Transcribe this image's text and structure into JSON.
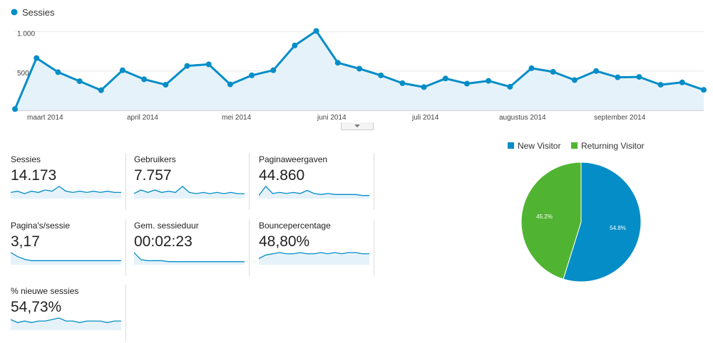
{
  "colors": {
    "primary": "#058dc7",
    "area": "#e6f2fa",
    "green": "#50b432",
    "grid": "#e8e8e8"
  },
  "chart_data": [
    {
      "type": "line",
      "legend": "Sessies",
      "y_ticks": [
        {
          "value": 500,
          "label": "500"
        },
        {
          "value": 1000,
          "label": "1.000"
        }
      ],
      "ylim": [
        0,
        1150
      ],
      "month_labels": [
        "maart 2014",
        "april 2014",
        "mei 2014",
        "juni 2014",
        "juli 2014",
        "augustus 2014",
        "september 2014"
      ],
      "values": [
        15,
        665,
        485,
        370,
        255,
        510,
        395,
        325,
        565,
        585,
        330,
        445,
        510,
        825,
        1010,
        605,
        530,
        445,
        345,
        295,
        405,
        340,
        375,
        300,
        535,
        490,
        385,
        500,
        420,
        425,
        325,
        355,
        260
      ]
    },
    {
      "type": "pie",
      "legend": [
        "New Visitor",
        "Returning Visitor"
      ],
      "values": [
        54.8,
        45.2
      ],
      "labels": [
        "54.8%",
        "45.2%"
      ],
      "colors": [
        "#058dc7",
        "#50b432"
      ]
    }
  ],
  "metrics": [
    {
      "label": "Sessies",
      "value": "14.173",
      "spark": [
        5,
        6,
        4,
        6,
        5,
        7,
        6,
        10,
        6,
        5,
        6,
        5,
        6,
        5,
        6,
        5,
        5
      ]
    },
    {
      "label": "Gebruikers",
      "value": "7.757",
      "spark": [
        4,
        7,
        5,
        7,
        5,
        6,
        5,
        10,
        5,
        4,
        5,
        4,
        5,
        4,
        5,
        4,
        4
      ]
    },
    {
      "label": "Paginaweergaven",
      "value": "44.860",
      "spark": [
        3,
        12,
        5,
        6,
        5,
        6,
        5,
        8,
        5,
        4,
        5,
        4,
        4,
        4,
        4,
        3,
        3
      ]
    },
    {
      "label": "Pagina's/sessie",
      "value": "3,17",
      "spark": [
        9,
        6,
        4,
        3,
        3,
        3,
        3,
        3,
        3,
        3,
        3,
        3,
        3,
        3,
        3,
        3,
        3
      ]
    },
    {
      "label": "Gem. sessieduur",
      "value": "00:02:23",
      "spark": [
        12,
        5,
        4,
        4,
        4,
        3,
        3,
        3,
        3,
        3,
        3,
        3,
        3,
        3,
        3,
        3,
        3
      ]
    },
    {
      "label": "Bouncepercentage",
      "value": "48,80%",
      "spark": [
        5,
        8,
        9,
        10,
        9,
        9,
        10,
        9,
        9,
        10,
        9,
        10,
        9,
        10,
        10,
        9,
        9
      ]
    },
    {
      "label": "% nieuwe sessies",
      "value": "54,73%",
      "spark": [
        7,
        5,
        6,
        5,
        6,
        6,
        7,
        8,
        6,
        6,
        5,
        6,
        6,
        6,
        5,
        6,
        6
      ]
    }
  ]
}
